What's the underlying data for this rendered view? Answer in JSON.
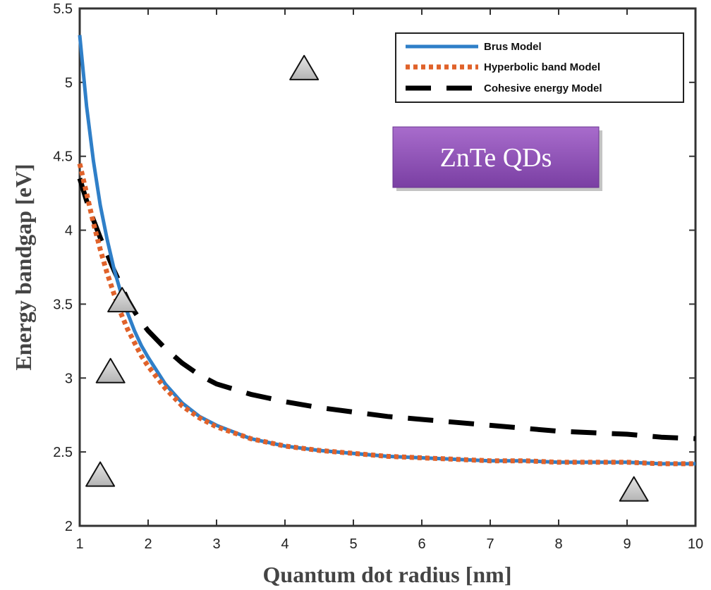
{
  "chart_data": {
    "type": "line",
    "xlabel": "Quantum dot radius [nm]",
    "ylabel": "Energy bandgap [eV]",
    "xlim": [
      1,
      10
    ],
    "ylim": [
      2,
      5.5
    ],
    "xticks": [
      1,
      2,
      3,
      4,
      5,
      6,
      7,
      8,
      9,
      10
    ],
    "yticks": [
      2,
      2.5,
      3,
      3.5,
      4,
      4.5,
      5,
      5.5
    ],
    "x": [
      1.0,
      1.1,
      1.2,
      1.3,
      1.4,
      1.5,
      1.6,
      1.7,
      1.8,
      1.9,
      2.0,
      2.25,
      2.5,
      2.75,
      3.0,
      3.5,
      4.0,
      4.5,
      5.0,
      5.5,
      6.0,
      6.5,
      7.0,
      7.5,
      8.0,
      8.5,
      9.0,
      9.5,
      10.0
    ],
    "series": [
      {
        "name": "Brus Model",
        "color": "#2f7fc8",
        "style": "solid",
        "values": [
          5.32,
          4.84,
          4.47,
          4.17,
          3.94,
          3.74,
          3.58,
          3.44,
          3.32,
          3.22,
          3.14,
          2.96,
          2.83,
          2.74,
          2.68,
          2.59,
          2.54,
          2.51,
          2.49,
          2.47,
          2.46,
          2.45,
          2.44,
          2.44,
          2.43,
          2.43,
          2.43,
          2.42,
          2.42
        ]
      },
      {
        "name": "Hyperbolic band Model",
        "color": "#e0622a",
        "style": "dotted",
        "values": [
          4.45,
          4.25,
          4.05,
          3.87,
          3.71,
          3.57,
          3.44,
          3.33,
          3.24,
          3.15,
          3.08,
          2.93,
          2.81,
          2.73,
          2.67,
          2.59,
          2.54,
          2.51,
          2.49,
          2.47,
          2.46,
          2.45,
          2.44,
          2.44,
          2.43,
          2.43,
          2.43,
          2.42,
          2.42
        ]
      },
      {
        "name": "Cohesive energy Model",
        "color": "#000000",
        "style": "dashed",
        "values": [
          4.35,
          4.2,
          4.07,
          3.95,
          3.84,
          3.73,
          3.63,
          3.53,
          3.45,
          3.38,
          3.32,
          3.2,
          3.1,
          3.02,
          2.96,
          2.89,
          2.84,
          2.8,
          2.77,
          2.74,
          2.72,
          2.7,
          2.68,
          2.66,
          2.64,
          2.63,
          2.62,
          2.6,
          2.59
        ]
      }
    ],
    "markers": {
      "shape": "triangle",
      "color": "#c8c8c8",
      "points": [
        {
          "x": 1.3,
          "y": 2.35
        },
        {
          "x": 1.45,
          "y": 3.05
        },
        {
          "x": 1.62,
          "y": 3.53
        },
        {
          "x": 4.28,
          "y": 5.1
        },
        {
          "x": 9.1,
          "y": 2.25
        }
      ]
    },
    "legend": {
      "placement": "top-right"
    },
    "annotation": {
      "text": "ZnTe QDs",
      "color": "#8a4fb0"
    },
    "grid": false
  }
}
